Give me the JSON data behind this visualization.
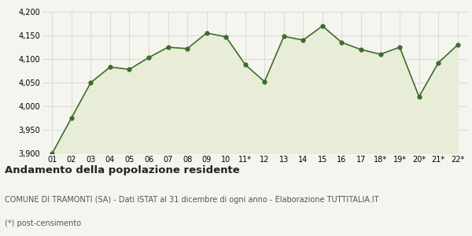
{
  "x_labels": [
    "01",
    "02",
    "03",
    "04",
    "05",
    "06",
    "07",
    "08",
    "09",
    "10",
    "11*",
    "12",
    "13",
    "14",
    "15",
    "16",
    "17",
    "18*",
    "19*",
    "20*",
    "21*",
    "22*"
  ],
  "y_values": [
    3900,
    3975,
    4050,
    4083,
    4078,
    4103,
    4125,
    4122,
    4155,
    4147,
    4088,
    4052,
    4148,
    4140,
    4170,
    4135,
    4120,
    4110,
    4125,
    4020,
    4092,
    4130
  ],
  "line_color": "#3a6e2a",
  "fill_color": "#e8edd8",
  "marker_color": "#3a6e2a",
  "bg_color": "#f5f5f0",
  "grid_color": "#d0d0c8",
  "ylim": [
    3900,
    4200
  ],
  "yticks": [
    3900,
    3950,
    4000,
    4050,
    4100,
    4150,
    4200
  ],
  "title": "Andamento della popolazione residente",
  "subtitle": "COMUNE DI TRAMONTI (SA) - Dati ISTAT al 31 dicembre di ogni anno - Elaborazione TUTTITALIA.IT",
  "footnote": "(*) post-censimento",
  "title_fontsize": 9.5,
  "subtitle_fontsize": 7,
  "footnote_fontsize": 7
}
